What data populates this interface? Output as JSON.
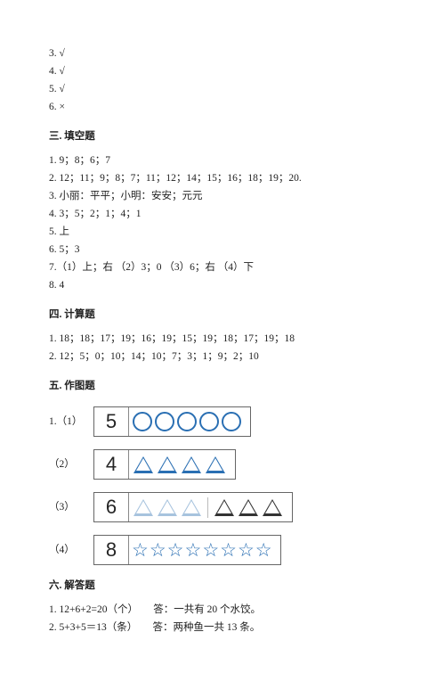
{
  "top_answers": [
    "3. √",
    "4. √",
    "5. √",
    "6. ×"
  ],
  "section3": {
    "heading": "三. 填空题",
    "lines": [
      "1. 9；8；6；7",
      "2. 12；11；9；8；7；11；12；14；15；16；18；19；20."
    ],
    "line3_prefix": "3. 小丽：平平；小明：安安；元元",
    "lines_cont": [
      "4. 3；5；2；1；4；1",
      "5. 上",
      "6. 5；3",
      "7.（1）上；右 （2）3；0 （3）6；右 （4）下",
      "8. 4"
    ]
  },
  "section4": {
    "heading": "四. 计算题",
    "lines": [
      "1. 18；18；17；19；16；19；15；19；18；17；19；18",
      "2. 12；5；0；10；14；10；7；3；1；9；2；10"
    ]
  },
  "section5": {
    "heading": "五. 作图题",
    "items": [
      {
        "label": "1.（1）",
        "num": "5",
        "shape": "circle",
        "count": 5,
        "colors": [
          "blue",
          "blue",
          "blue",
          "blue",
          "blue"
        ]
      },
      {
        "label": "（2）",
        "num": "4",
        "shape": "triangle",
        "count": 4,
        "colors": [
          "blue",
          "blue",
          "blue",
          "blue"
        ]
      },
      {
        "label": "（3）",
        "num": "6",
        "shape": "triangle",
        "count": 6,
        "colors": [
          "light",
          "light",
          "light",
          "black",
          "black",
          "black"
        ],
        "divider_after": 3
      },
      {
        "label": "（4）",
        "num": "8",
        "shape": "star",
        "count": 8,
        "colors": [
          "blue",
          "blue",
          "blue",
          "blue",
          "blue",
          "blue",
          "blue",
          "blue"
        ]
      }
    ]
  },
  "section6": {
    "heading": "六. 解答题",
    "lines": [
      "1. 12+6+2=20（个）　　答：一共有 20 个水饺。",
      "2. 5+3+5＝13（条）　　答：两种鱼一共 13 条。"
    ]
  },
  "colors": {
    "blue": "#2a6fb3",
    "light": "#a7c3de",
    "black": "#333333",
    "text": "#212121",
    "border": "#666666"
  }
}
